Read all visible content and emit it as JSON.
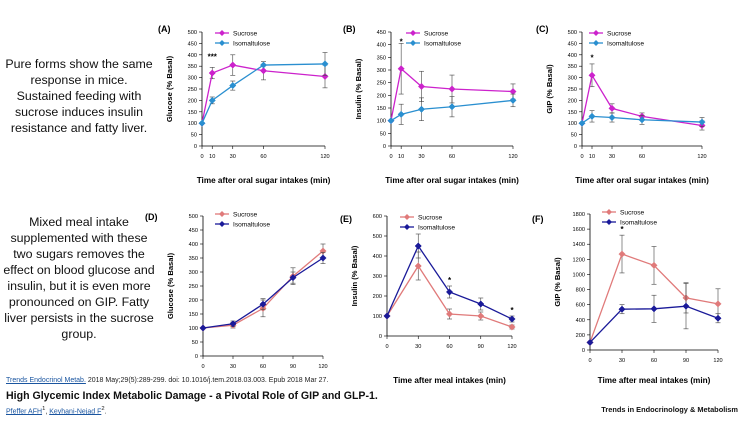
{
  "text_blocks": {
    "block1": "Pure forms show the same response in mice. Sustained feeding with sucrose induces insulin resistance and fatty liver.",
    "block2": "Mixed meal intake supplemented with these two sugars removes the effect on blood glucose and insulin, but it is even more pronounced on GIP. Fatty liver persists in the sucrose group."
  },
  "citation": {
    "journal_link": "Trends Endocrinol Metab.",
    "details": " 2018 May;29(5):289-299. doi: 10.1016/j.tem.2018.03.003. Epub 2018 Mar 27.",
    "title": "High Glycemic Index Metabolic Damage - a Pivotal Role of GIP and GLP-1.",
    "author1": "Pfeffer AFH",
    "author1_sup": "1",
    "separator": ", ",
    "author2": "Keyhani-Nejad F",
    "author2_sup": "2",
    "end": "."
  },
  "journal_name": "Trends in Endocrinology & Metabolism",
  "colors": {
    "sucrose_mice": "#cc22cc",
    "isomaltulose_mice": "#2a8fd0",
    "sucrose_meal": "#e07a7a",
    "isomaltulose_meal": "#1a1a99",
    "axis": "#000000"
  },
  "chart_data": [
    {
      "panel": "(A)",
      "type": "line",
      "xlabel": "Time after oral sugar intakes (min)",
      "ylabel": "Glucose (% Basal)",
      "xticks": [
        0,
        10,
        30,
        60,
        120
      ],
      "xlim": [
        0,
        120
      ],
      "yticks": [
        0,
        50,
        100,
        150,
        200,
        250,
        300,
        350,
        400,
        450,
        500
      ],
      "ylim": [
        0,
        500
      ],
      "series": [
        {
          "name": "Sucrose",
          "x": [
            0,
            10,
            30,
            60,
            120
          ],
          "y": [
            100,
            320,
            355,
            330,
            305
          ],
          "err": [
            0,
            25,
            45,
            40,
            50
          ]
        },
        {
          "name": "Isomaltulose",
          "x": [
            0,
            10,
            30,
            60,
            120
          ],
          "y": [
            100,
            200,
            265,
            355,
            360
          ],
          "err": [
            0,
            15,
            20,
            0,
            50
          ]
        }
      ],
      "annotations": [
        {
          "x": 10,
          "y": 380,
          "text": "***"
        }
      ]
    },
    {
      "panel": "(B)",
      "type": "line",
      "xlabel": "Time after oral sugar intakes (min)",
      "ylabel": "Insulin (% Basal)",
      "xticks": [
        0,
        10,
        30,
        60,
        120
      ],
      "xlim": [
        0,
        120
      ],
      "yticks": [
        0,
        50,
        100,
        150,
        200,
        250,
        300,
        350,
        400,
        450
      ],
      "ylim": [
        0,
        450
      ],
      "series": [
        {
          "name": "Sucrose",
          "x": [
            0,
            10,
            30,
            60,
            120
          ],
          "y": [
            100,
            305,
            235,
            225,
            215
          ],
          "err": [
            0,
            100,
            60,
            55,
            30
          ]
        },
        {
          "name": "Isomaltulose",
          "x": [
            0,
            10,
            30,
            60,
            120
          ],
          "y": [
            100,
            125,
            145,
            155,
            180
          ],
          "err": [
            0,
            40,
            45,
            40,
            25
          ]
        }
      ],
      "annotations": [
        {
          "x": 10,
          "y": 400,
          "text": "*"
        }
      ]
    },
    {
      "panel": "(C)",
      "type": "line",
      "xlabel": "Time after oral sugar intakes (min)",
      "ylabel": "GIP (% Basal)",
      "xticks": [
        0,
        10,
        30,
        60,
        120
      ],
      "xlim": [
        0,
        120
      ],
      "yticks": [
        0,
        50,
        100,
        150,
        200,
        250,
        300,
        350,
        400,
        450,
        500
      ],
      "ylim": [
        0,
        500
      ],
      "series": [
        {
          "name": "Sucrose",
          "x": [
            0,
            10,
            30,
            60,
            120
          ],
          "y": [
            100,
            310,
            165,
            130,
            90
          ],
          "err": [
            0,
            50,
            20,
            15,
            20
          ]
        },
        {
          "name": "Isomaltulose",
          "x": [
            0,
            10,
            30,
            60,
            120
          ],
          "y": [
            100,
            130,
            125,
            115,
            105
          ],
          "err": [
            0,
            25,
            20,
            20,
            20
          ]
        }
      ],
      "annotations": [
        {
          "x": 10,
          "y": 375,
          "text": "*"
        }
      ]
    },
    {
      "panel": "(D)",
      "type": "line",
      "xlabel": "",
      "ylabel": "Glucose (% Basal)",
      "xticks": [
        0,
        30,
        60,
        90,
        120
      ],
      "xlim": [
        0,
        120
      ],
      "yticks": [
        0,
        50,
        100,
        150,
        200,
        250,
        300,
        350,
        400,
        450,
        500
      ],
      "ylim": [
        0,
        500
      ],
      "series": [
        {
          "name": "Sucrose",
          "x": [
            0,
            30,
            60,
            90,
            120
          ],
          "y": [
            100,
            110,
            170,
            285,
            375
          ],
          "err": [
            0,
            10,
            30,
            30,
            25
          ]
        },
        {
          "name": "Isomaltulose",
          "x": [
            0,
            30,
            60,
            90,
            120
          ],
          "y": [
            100,
            115,
            185,
            280,
            350
          ],
          "err": [
            0,
            10,
            20,
            20,
            20
          ]
        }
      ],
      "annotations": []
    },
    {
      "panel": "(E)",
      "type": "line",
      "xlabel": "Time after meal intakes (min)",
      "ylabel": "Insulin (% Basal)",
      "xticks": [
        0,
        30,
        60,
        90,
        120
      ],
      "xlim": [
        0,
        120
      ],
      "yticks": [
        0,
        100,
        200,
        300,
        400,
        500,
        600
      ],
      "ylim": [
        0,
        600
      ],
      "series": [
        {
          "name": "Sucrose",
          "x": [
            0,
            30,
            60,
            90,
            120
          ],
          "y": [
            100,
            350,
            110,
            100,
            45
          ],
          "err": [
            0,
            70,
            25,
            20,
            10
          ]
        },
        {
          "name": "Isomaltulose",
          "x": [
            0,
            30,
            60,
            90,
            120
          ],
          "y": [
            100,
            450,
            220,
            160,
            85
          ],
          "err": [
            0,
            60,
            30,
            30,
            15
          ]
        }
      ],
      "annotations": [
        {
          "x": 60,
          "y": 265,
          "text": "*"
        },
        {
          "x": 120,
          "y": 115,
          "text": "*"
        }
      ]
    },
    {
      "panel": "(F)",
      "type": "line",
      "xlabel": "Time after meal intakes (min)",
      "ylabel": "GIP (% Basal)",
      "xticks": [
        0,
        30,
        60,
        90,
        120
      ],
      "xlim": [
        0,
        120
      ],
      "yticks": [
        0,
        200,
        400,
        600,
        800,
        1000,
        1200,
        1400,
        1600,
        1800
      ],
      "ylim": [
        0,
        1800
      ],
      "series": [
        {
          "name": "Sucrose",
          "x": [
            0,
            30,
            60,
            90,
            120
          ],
          "y": [
            100,
            1270,
            1120,
            690,
            610
          ],
          "err": [
            0,
            250,
            250,
            200,
            200
          ]
        },
        {
          "name": "Isomaltulose",
          "x": [
            0,
            30,
            60,
            90,
            120
          ],
          "y": [
            100,
            540,
            545,
            580,
            420
          ],
          "err": [
            0,
            60,
            180,
            300,
            60
          ]
        }
      ],
      "annotations": [
        {
          "x": 30,
          "y": 1560,
          "text": "*"
        }
      ]
    }
  ]
}
